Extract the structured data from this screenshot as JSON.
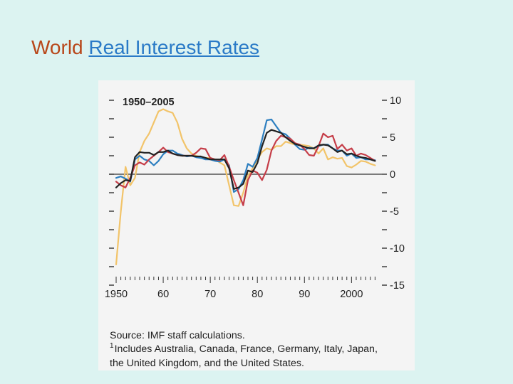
{
  "slide": {
    "title_plain": "World ",
    "title_link": "Real Interest Rates"
  },
  "chart_data": {
    "type": "line",
    "title": "1950–2005",
    "xlabel": "",
    "ylabel": "",
    "xlim": [
      1950,
      2006
    ],
    "ylim": [
      -15,
      10
    ],
    "x_ticks": [
      1950,
      1960,
      1970,
      1980,
      1990,
      2000
    ],
    "x_tick_labels": [
      "1950",
      "60",
      "70",
      "80",
      "90",
      "2000"
    ],
    "y_ticks": [
      10,
      5,
      0,
      -5,
      -10,
      -15
    ],
    "y_tick_labels": [
      "10",
      "5",
      "0",
      "-5",
      "-10",
      "-15"
    ],
    "grid": false,
    "legend": "none",
    "zero_line": true,
    "series": [
      {
        "color": "#f2c46a",
        "points": [
          [
            1950,
            -12.2
          ],
          [
            1951,
            -5
          ],
          [
            1952,
            1
          ],
          [
            1953,
            -1.5
          ],
          [
            1954,
            -0.5
          ],
          [
            1955,
            3
          ],
          [
            1956,
            4.5
          ],
          [
            1957,
            5.5
          ],
          [
            1958,
            7
          ],
          [
            1959,
            8.5
          ],
          [
            1960,
            8.8
          ],
          [
            1961,
            8.5
          ],
          [
            1962,
            8.3
          ],
          [
            1963,
            7
          ],
          [
            1964,
            4.8
          ],
          [
            1965,
            3.5
          ],
          [
            1966,
            2.8
          ],
          [
            1967,
            2.5
          ],
          [
            1968,
            2.3
          ],
          [
            1969,
            2.2
          ],
          [
            1970,
            2.2
          ],
          [
            1971,
            2
          ],
          [
            1972,
            1.6
          ],
          [
            1973,
            1.2
          ],
          [
            1974,
            -1.5
          ],
          [
            1975,
            -4.2
          ],
          [
            1976,
            -4.3
          ],
          [
            1977,
            -2.5
          ],
          [
            1978,
            -0.2
          ],
          [
            1979,
            0.8
          ],
          [
            1980,
            2
          ],
          [
            1981,
            3
          ],
          [
            1982,
            3.5
          ],
          [
            1983,
            3.3
          ],
          [
            1984,
            3.8
          ],
          [
            1985,
            3.8
          ],
          [
            1986,
            4.4
          ],
          [
            1987,
            4.2
          ],
          [
            1988,
            4
          ],
          [
            1989,
            4
          ],
          [
            1990,
            3.9
          ],
          [
            1991,
            3.8
          ],
          [
            1992,
            3.5
          ],
          [
            1993,
            2.8
          ],
          [
            1994,
            3.5
          ],
          [
            1995,
            2
          ],
          [
            1996,
            2.3
          ],
          [
            1997,
            2.1
          ],
          [
            1998,
            2.2
          ],
          [
            1999,
            1.1
          ],
          [
            2000,
            0.9
          ],
          [
            2001,
            1.3
          ],
          [
            2002,
            1.8
          ],
          [
            2003,
            1.7
          ],
          [
            2004,
            1.4
          ],
          [
            2005,
            1.2
          ]
        ]
      },
      {
        "color": "#2d7fc0",
        "points": [
          [
            1950,
            -0.5
          ],
          [
            1951,
            -0.3
          ],
          [
            1952,
            -0.6
          ],
          [
            1953,
            -1
          ],
          [
            1954,
            2
          ],
          [
            1955,
            2.5
          ],
          [
            1956,
            2
          ],
          [
            1957,
            1.8
          ],
          [
            1958,
            1.2
          ],
          [
            1959,
            1.8
          ],
          [
            1960,
            2.7
          ],
          [
            1961,
            3.2
          ],
          [
            1962,
            3.2
          ],
          [
            1963,
            2.8
          ],
          [
            1964,
            2.6
          ],
          [
            1965,
            2.4
          ],
          [
            1966,
            2.5
          ],
          [
            1967,
            2.3
          ],
          [
            1968,
            2.2
          ],
          [
            1969,
            2
          ],
          [
            1970,
            2
          ],
          [
            1971,
            1.8
          ],
          [
            1972,
            1.7
          ],
          [
            1973,
            2
          ],
          [
            1974,
            1.2
          ],
          [
            1975,
            -2.4
          ],
          [
            1976,
            -2
          ],
          [
            1977,
            -0.8
          ],
          [
            1978,
            1.4
          ],
          [
            1979,
            1
          ],
          [
            1980,
            2.2
          ],
          [
            1981,
            4.7
          ],
          [
            1982,
            7.3
          ],
          [
            1983,
            7.4
          ],
          [
            1984,
            6.5
          ],
          [
            1985,
            5.6
          ],
          [
            1986,
            5.4
          ],
          [
            1987,
            4.8
          ],
          [
            1988,
            4
          ],
          [
            1989,
            3.4
          ],
          [
            1990,
            3.3
          ],
          [
            1991,
            3.6
          ],
          [
            1992,
            3.5
          ],
          [
            1993,
            3.8
          ],
          [
            1994,
            4
          ],
          [
            1995,
            4
          ],
          [
            1996,
            3.5
          ],
          [
            1997,
            3.2
          ],
          [
            1998,
            3.2
          ],
          [
            1999,
            2.5
          ],
          [
            2000,
            2.8
          ],
          [
            2001,
            2.2
          ],
          [
            2002,
            2.3
          ],
          [
            2003,
            2
          ],
          [
            2004,
            2
          ],
          [
            2005,
            1.9
          ]
        ]
      },
      {
        "color": "#c53d48",
        "points": [
          [
            1950,
            -1
          ],
          [
            1951,
            -1.5
          ],
          [
            1952,
            -1.8
          ],
          [
            1953,
            -0.5
          ],
          [
            1954,
            1.2
          ],
          [
            1955,
            1.6
          ],
          [
            1956,
            1.3
          ],
          [
            1957,
            2
          ],
          [
            1958,
            2.5
          ],
          [
            1959,
            3
          ],
          [
            1960,
            3.6
          ],
          [
            1961,
            3
          ],
          [
            1962,
            2.8
          ],
          [
            1963,
            2.6
          ],
          [
            1964,
            2.5
          ],
          [
            1965,
            2.5
          ],
          [
            1966,
            2.5
          ],
          [
            1967,
            2.9
          ],
          [
            1968,
            3.5
          ],
          [
            1969,
            3.4
          ],
          [
            1970,
            2.2
          ],
          [
            1971,
            2
          ],
          [
            1972,
            1.9
          ],
          [
            1973,
            2.6
          ],
          [
            1974,
            1
          ],
          [
            1975,
            -0.8
          ],
          [
            1976,
            -2.5
          ],
          [
            1977,
            -4.2
          ],
          [
            1978,
            -0.8
          ],
          [
            1979,
            0.5
          ],
          [
            1980,
            0.2
          ],
          [
            1981,
            -0.8
          ],
          [
            1982,
            0.6
          ],
          [
            1983,
            3.2
          ],
          [
            1984,
            4.5
          ],
          [
            1985,
            5.2
          ],
          [
            1986,
            5
          ],
          [
            1987,
            4.8
          ],
          [
            1988,
            4.2
          ],
          [
            1989,
            4
          ],
          [
            1990,
            3.4
          ],
          [
            1991,
            2.6
          ],
          [
            1992,
            2.5
          ],
          [
            1993,
            3.8
          ],
          [
            1994,
            5.5
          ],
          [
            1995,
            5
          ],
          [
            1996,
            5.2
          ],
          [
            1997,
            3.4
          ],
          [
            1998,
            4
          ],
          [
            1999,
            3.2
          ],
          [
            2000,
            3.5
          ],
          [
            2001,
            2.5
          ],
          [
            2002,
            2.8
          ],
          [
            2003,
            2.6
          ],
          [
            2004,
            2.2
          ],
          [
            2005,
            1.8
          ]
        ]
      },
      {
        "color": "#222222",
        "points": [
          [
            1950,
            -1.8
          ],
          [
            1951,
            -1.2
          ],
          [
            1952,
            -0.8
          ],
          [
            1953,
            -0.9
          ],
          [
            1954,
            2.3
          ],
          [
            1955,
            3
          ],
          [
            1956,
            2.9
          ],
          [
            1957,
            2.9
          ],
          [
            1958,
            2.6
          ],
          [
            1959,
            3
          ],
          [
            1960,
            3
          ],
          [
            1961,
            3.2
          ],
          [
            1962,
            2.8
          ],
          [
            1963,
            2.6
          ],
          [
            1964,
            2.5
          ],
          [
            1965,
            2.5
          ],
          [
            1966,
            2.5
          ],
          [
            1967,
            2.4
          ],
          [
            1968,
            2.4
          ],
          [
            1969,
            2.2
          ],
          [
            1970,
            2
          ],
          [
            1971,
            2
          ],
          [
            1972,
            2
          ],
          [
            1973,
            2
          ],
          [
            1974,
            0.8
          ],
          [
            1975,
            -2
          ],
          [
            1976,
            -1.8
          ],
          [
            1977,
            -1.3
          ],
          [
            1978,
            0.5
          ],
          [
            1979,
            0.3
          ],
          [
            1980,
            1.5
          ],
          [
            1981,
            3.8
          ],
          [
            1982,
            5.6
          ],
          [
            1983,
            6
          ],
          [
            1984,
            5.8
          ],
          [
            1985,
            5.6
          ],
          [
            1986,
            5
          ],
          [
            1987,
            4.5
          ],
          [
            1988,
            4.1
          ],
          [
            1989,
            3.9
          ],
          [
            1990,
            3.7
          ],
          [
            1991,
            3.5
          ],
          [
            1992,
            3.5
          ],
          [
            1993,
            3.9
          ],
          [
            1994,
            4
          ],
          [
            1995,
            3.9
          ],
          [
            1996,
            3.5
          ],
          [
            1997,
            3
          ],
          [
            1998,
            3.2
          ],
          [
            1999,
            2.7
          ],
          [
            2000,
            2.8
          ],
          [
            2001,
            2.5
          ],
          [
            2002,
            2.3
          ],
          [
            2003,
            2.2
          ],
          [
            2004,
            2
          ],
          [
            2005,
            1.8
          ]
        ]
      }
    ]
  },
  "notes": {
    "source": "Source: IMF staff calculations.",
    "footnote_marker": "1",
    "footnote_line1": "Includes Australia, Canada, France, Germany, Italy, Japan,",
    "footnote_line2": "the United Kingdom, and the United States."
  }
}
